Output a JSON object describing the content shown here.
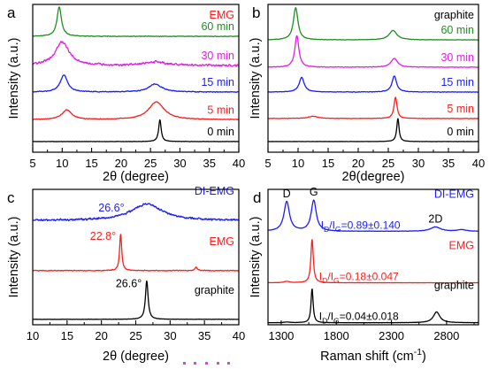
{
  "chart_data": [
    {
      "panel": "a",
      "type": "line",
      "title": "EMG",
      "title_color": "#ff1c1c",
      "xlabel": "2θ (degree)",
      "ylabel": "Intensity (a.u.)",
      "xlim": [
        5,
        40
      ],
      "ylim": [
        0,
        10
      ],
      "xticks": [
        5,
        10,
        15,
        20,
        25,
        30,
        35,
        40
      ],
      "series": [
        {
          "name": "60 min",
          "color": "#1f8f1f",
          "baseline": 7.84,
          "noise": 0.03,
          "peaks": [
            {
              "x": 9.5,
              "h": 2.0,
              "w": 0.9
            }
          ]
        },
        {
          "name": "30 min",
          "color": "#e21ee2",
          "baseline": 5.87,
          "noise": 0.1,
          "peaks": [
            {
              "x": 10.0,
              "h": 1.6,
              "w": 2.8
            },
            {
              "x": 26.0,
              "h": 0.25,
              "w": 4.0
            }
          ]
        },
        {
          "name": "15 min",
          "color": "#1c1cff",
          "baseline": 4.07,
          "noise": 0.04,
          "peaks": [
            {
              "x": 10.3,
              "h": 1.15,
              "w": 1.5
            },
            {
              "x": 25.8,
              "h": 0.55,
              "w": 2.6
            }
          ]
        },
        {
          "name": "5 min",
          "color": "#ff1c1c",
          "baseline": 2.2,
          "noise": 0.03,
          "peaks": [
            {
              "x": 10.8,
              "h": 0.65,
              "w": 2.0
            },
            {
              "x": 26.0,
              "h": 1.2,
              "w": 3.2
            }
          ]
        },
        {
          "name": "0 min",
          "color": "#000000",
          "baseline": 0.72,
          "noise": 0.015,
          "peaks": [
            {
              "x": 26.6,
              "h": 1.5,
              "w": 0.5
            }
          ]
        }
      ]
    },
    {
      "panel": "b",
      "type": "line",
      "title": "graphite",
      "title_color": "#000000",
      "xlabel": "2θ(degree)",
      "ylabel": "Intensity (a.u.)",
      "xlim": [
        5,
        40
      ],
      "ylim": [
        0,
        10
      ],
      "xticks": [
        5,
        10,
        15,
        20,
        25,
        30,
        35,
        40
      ],
      "series": [
        {
          "name": "60 min",
          "color": "#1f8f1f",
          "baseline": 7.6,
          "noise": 0.02,
          "peaks": [
            {
              "x": 9.6,
              "h": 2.2,
              "w": 0.9
            },
            {
              "x": 25.8,
              "h": 0.65,
              "w": 1.5
            }
          ]
        },
        {
          "name": "30 min",
          "color": "#e21ee2",
          "baseline": 5.75,
          "noise": 0.03,
          "peaks": [
            {
              "x": 9.8,
              "h": 2.15,
              "w": 0.8
            },
            {
              "x": 26.0,
              "h": 0.6,
              "w": 1.3
            }
          ]
        },
        {
          "name": "15 min",
          "color": "#1c1cff",
          "baseline": 4.07,
          "noise": 0.025,
          "peaks": [
            {
              "x": 10.6,
              "h": 1.0,
              "w": 1.0
            },
            {
              "x": 26.0,
              "h": 1.1,
              "w": 0.9
            }
          ]
        },
        {
          "name": "5 min",
          "color": "#ff1c1c",
          "baseline": 2.28,
          "noise": 0.02,
          "peaks": [
            {
              "x": 12.5,
              "h": 0.15,
              "w": 2.0
            },
            {
              "x": 26.2,
              "h": 1.45,
              "w": 0.6
            }
          ]
        },
        {
          "name": "0 min",
          "color": "#000000",
          "baseline": 0.72,
          "noise": 0.01,
          "peaks": [
            {
              "x": 26.6,
              "h": 1.6,
              "w": 0.45
            }
          ]
        }
      ]
    },
    {
      "panel": "c",
      "type": "line",
      "xlabel": "2θ (degree)",
      "ylabel": "Intensity (a.u.)",
      "xlim": [
        10,
        40
      ],
      "ylim": [
        0,
        10
      ],
      "xticks": [
        10,
        15,
        20,
        25,
        30,
        35,
        40
      ],
      "series": [
        {
          "name": "DI-EMG",
          "color": "#1c1cff",
          "baseline": 7.7,
          "noise": 0.1,
          "peaks": [
            {
              "x": 26.6,
              "h": 1.2,
              "w": 5.5,
              "label": "26.6°"
            }
          ]
        },
        {
          "name": "EMG",
          "color": "#ff1c1c",
          "baseline": 4.0,
          "noise": 0.04,
          "peaks": [
            {
              "x": 22.8,
              "h": 2.8,
              "w": 0.35,
              "label": "22.8°"
            },
            {
              "x": 33.8,
              "h": 0.25,
              "w": 0.4
            }
          ]
        },
        {
          "name": "graphite",
          "color": "#000000",
          "baseline": 0.4,
          "noise": 0.015,
          "peaks": [
            {
              "x": 26.6,
              "h": 2.9,
              "w": 0.45,
              "label": "26.6°"
            }
          ]
        }
      ]
    },
    {
      "panel": "d",
      "type": "line",
      "xlabel": [
        {
          "text": "Raman shift (cm"
        },
        {
          "text": "-1",
          "sup": true
        },
        {
          "text": ")"
        }
      ],
      "ylabel": "Intensity (a.u.)",
      "xlim": [
        1180,
        3090
      ],
      "ylim": [
        0,
        10
      ],
      "xticks": [
        1300,
        1800,
        2300,
        2800
      ],
      "series": [
        {
          "name": "DI-EMG",
          "color": "#1c1cff",
          "baseline": 6.9,
          "noise": 0.02,
          "peaks": [
            {
              "x": 1350,
              "h": 2.2,
              "w": 60,
              "label": "D",
              "label_color": "#000000"
            },
            {
              "x": 1595,
              "h": 2.3,
              "w": 55,
              "label": "G",
              "label_color": "#000000"
            },
            {
              "x": 2700,
              "h": 0.32,
              "w": 110,
              "label": "2D",
              "label_color": "#000000"
            },
            {
              "x": 2935,
              "h": 0.12,
              "w": 90
            }
          ],
          "note": [
            {
              "text": "I"
            },
            {
              "text": "D",
              "sub": true
            },
            {
              "text": "/I"
            },
            {
              "text": "G",
              "sub": true
            },
            {
              "text": "=0.89±0.140"
            }
          ]
        },
        {
          "name": "EMG",
          "color": "#ff1c1c",
          "baseline": 3.1,
          "noise": 0.01,
          "peaks": [
            {
              "x": 1350,
              "h": 0.1,
              "w": 60
            },
            {
              "x": 1580,
              "h": 3.3,
              "w": 25
            }
          ],
          "note": [
            {
              "text": "I"
            },
            {
              "text": "D",
              "sub": true
            },
            {
              "text": "/I"
            },
            {
              "text": "G",
              "sub": true
            },
            {
              "text": "=0.18±0.047"
            }
          ]
        },
        {
          "name": "graphite",
          "color": "#000000",
          "baseline": 0.15,
          "noise": 0.01,
          "peaks": [
            {
              "x": 1350,
              "h": 0.05,
              "w": 60
            },
            {
              "x": 1580,
              "h": 2.6,
              "w": 22
            },
            {
              "x": 2710,
              "h": 0.8,
              "w": 70
            }
          ],
          "note": [
            {
              "text": "I"
            },
            {
              "text": "D",
              "sub": true
            },
            {
              "text": "/I"
            },
            {
              "text": "G",
              "sub": true
            },
            {
              "text": "=0.04±0.018"
            }
          ]
        }
      ]
    }
  ]
}
